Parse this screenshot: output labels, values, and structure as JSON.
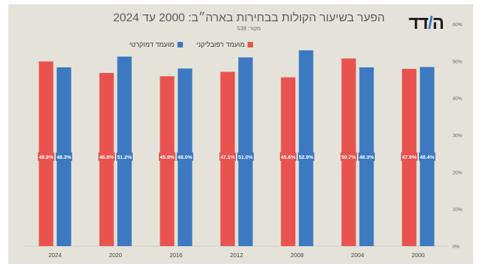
{
  "logo": {
    "main": "ה",
    "accent": "/",
    "rest": "דד"
  },
  "chart_data": {
    "type": "bar",
    "title": "הפער בשיעור הקולות בבחירות בארה״ב: 2000 עד 2024",
    "subtitle": "מקור: 538",
    "categories": [
      "2024",
      "2020",
      "2016",
      "2012",
      "2008",
      "2004",
      "2000"
    ],
    "series": [
      {
        "name": "מועמד רפובליקני",
        "color": "#e8534f",
        "values": [
          49.9,
          46.8,
          45.9,
          47.1,
          45.6,
          50.7,
          47.9
        ],
        "labels": [
          "49.9%",
          "46.8%",
          "45.9%",
          "47.1%",
          "45.6%",
          "50.7%",
          "47.9%"
        ]
      },
      {
        "name": "מועמד דמוקרטי",
        "color": "#3c79c1",
        "values": [
          48.3,
          51.2,
          48.0,
          51.0,
          52.9,
          48.3,
          48.4
        ],
        "labels": [
          "48.3%",
          "51.2%",
          "48.0%",
          "51.0%",
          "52.9%",
          "48.3%",
          "48.4%"
        ]
      }
    ],
    "ylim": [
      0,
      60
    ],
    "yticks": [
      "0%",
      "10%",
      "20%",
      "30%",
      "40%",
      "50%",
      "60%"
    ],
    "y_axis_side": "right",
    "legend_position": "top-left",
    "grid": false
  }
}
